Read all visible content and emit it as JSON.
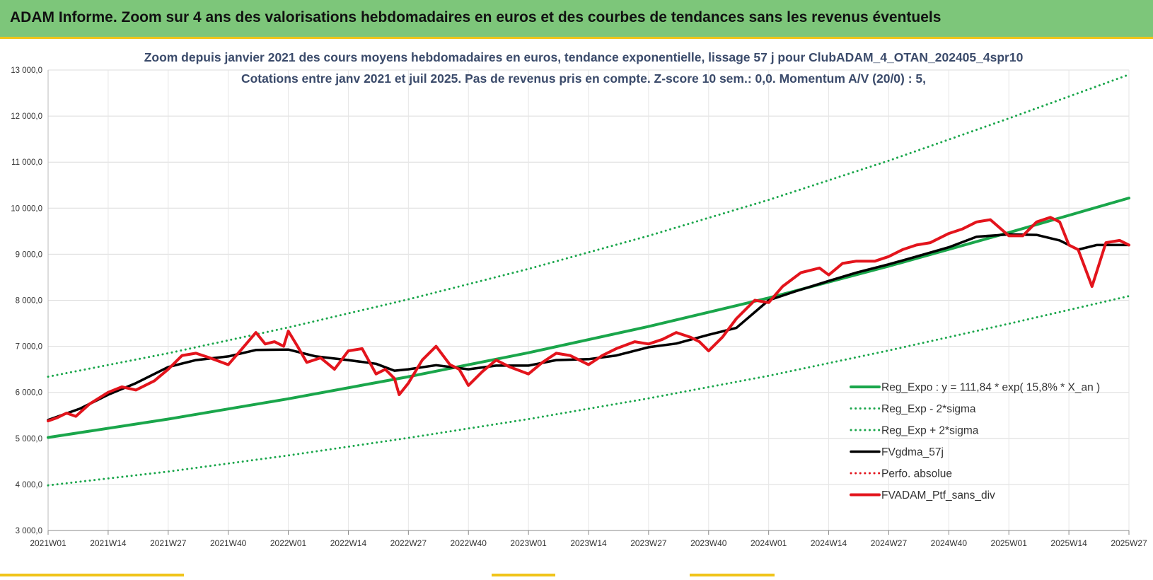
{
  "banner": {
    "title": "ADAM Informe. Zoom sur 4 ans des valorisations hebdomadaires en euros et des courbes de tendances sans les revenus éventuels"
  },
  "colors": {
    "banner_bg": "#7dc67a",
    "accent": "#f0c419",
    "trend_green": "#1aa64b",
    "smooth_black": "#000000",
    "portfolio_red": "#e3141c"
  },
  "chart_data": {
    "type": "line",
    "title": "Zoom depuis janvier 2021 des cours moyens hebdomadaires en euros, tendance exponentielle, lissage 57 j pour ClubADAM_4_OTAN_202405_4spr10",
    "subtitle": "Cotations entre janv 2021 et juil 2025. Pas de revenus pris en compte. Z-score 10 sem.: 0,0. Momentum A/V (20/0) : 5,",
    "x_range": [
      "2021W01",
      "2025W27"
    ],
    "x_ticks": [
      "2021W01",
      "2021W14",
      "2021W27",
      "2021W40",
      "2022W01",
      "2022W14",
      "2022W27",
      "2022W40",
      "2023W01",
      "2023W14",
      "2023W27",
      "2023W40",
      "2024W01",
      "2024W14",
      "2024W27",
      "2024W40",
      "2025W01",
      "2025W14",
      "2025W27"
    ],
    "ylim": [
      3000,
      13000
    ],
    "y_ticks": [
      "3 000,0",
      "4 000,0",
      "5 000,0",
      "6 000,0",
      "7 000,0",
      "8 000,0",
      "9 000,0",
      "10 000,0",
      "11 000,0",
      "12 000,0",
      "13 000,0"
    ],
    "grid": true,
    "legend_position": "bottom-right",
    "series": [
      {
        "name": "Reg_Expo : y = 111,84 * exp( 15,8% *  X_an )",
        "style": "solid-thick",
        "color": "#1aa64b",
        "x": [
          "2021W01",
          "2021W27",
          "2022W01",
          "2022W27",
          "2023W01",
          "2023W27",
          "2024W01",
          "2024W27",
          "2025W01",
          "2025W27"
        ],
        "values": [
          5020,
          5420,
          5860,
          6340,
          6860,
          7430,
          8050,
          8740,
          9470,
          10220
        ]
      },
      {
        "name": "Reg_Exp - 2*sigma",
        "style": "dotted",
        "color": "#1aa64b",
        "x": [
          "2021W01",
          "2021W27",
          "2022W01",
          "2022W27",
          "2023W01",
          "2023W27",
          "2024W01",
          "2024W27",
          "2025W01",
          "2025W27"
        ],
        "values": [
          3980,
          4280,
          4630,
          5010,
          5420,
          5870,
          6360,
          6910,
          7490,
          8090
        ]
      },
      {
        "name": "Reg_Exp + 2*sigma",
        "style": "dotted",
        "color": "#1aa64b",
        "x": [
          "2021W01",
          "2021W27",
          "2022W01",
          "2022W27",
          "2023W01",
          "2023W27",
          "2024W01",
          "2024W27",
          "2025W01",
          "2025W27"
        ],
        "values": [
          6340,
          6850,
          7410,
          8020,
          8680,
          9400,
          10180,
          11030,
          11950,
          12900
        ]
      },
      {
        "name": "FVgdma_57j",
        "style": "solid",
        "color": "#000000",
        "x": [
          "2021W01",
          "2021W08",
          "2021W14",
          "2021W20",
          "2021W27",
          "2021W33",
          "2021W40",
          "2021W46",
          "2022W01",
          "2022W07",
          "2022W14",
          "2022W20",
          "2022W24",
          "2022W27",
          "2022W33",
          "2022W40",
          "2022W46",
          "2023W01",
          "2023W07",
          "2023W14",
          "2023W20",
          "2023W27",
          "2023W33",
          "2023W40",
          "2023W46",
          "2024W01",
          "2024W07",
          "2024W14",
          "2024W20",
          "2024W27",
          "2024W33",
          "2024W40",
          "2024W46",
          "2025W01",
          "2025W07",
          "2025W12",
          "2025W16",
          "2025W20",
          "2025W27"
        ],
        "values": [
          5400,
          5650,
          5950,
          6200,
          6550,
          6700,
          6780,
          6920,
          6930,
          6780,
          6700,
          6620,
          6470,
          6500,
          6590,
          6500,
          6580,
          6580,
          6700,
          6720,
          6800,
          6980,
          7060,
          7250,
          7400,
          8000,
          8200,
          8420,
          8600,
          8780,
          8950,
          9150,
          9380,
          9430,
          9420,
          9300,
          9100,
          9200,
          9200
        ]
      },
      {
        "name": "Perfo. absolue",
        "style": "dotted",
        "color": "#e3141c",
        "x": [],
        "values": []
      },
      {
        "name": "FVADAM_Ptf_sans_div",
        "style": "solid-thick",
        "color": "#e3141c",
        "x": [
          "2021W01",
          "2021W03",
          "2021W05",
          "2021W07",
          "2021W10",
          "2021W14",
          "2021W17",
          "2021W20",
          "2021W24",
          "2021W27",
          "2021W30",
          "2021W33",
          "2021W36",
          "2021W40",
          "2021W43",
          "2021W46",
          "2021W48",
          "2021W50",
          "2021W52",
          "2022W01",
          "2022W03",
          "2022W05",
          "2022W08",
          "2022W11",
          "2022W14",
          "2022W17",
          "2022W20",
          "2022W22",
          "2022W24",
          "2022W25",
          "2022W27",
          "2022W30",
          "2022W33",
          "2022W36",
          "2022W38",
          "2022W40",
          "2022W43",
          "2022W46",
          "2022W49",
          "2023W01",
          "2023W04",
          "2023W07",
          "2023W10",
          "2023W14",
          "2023W17",
          "2023W20",
          "2023W24",
          "2023W27",
          "2023W30",
          "2023W33",
          "2023W36",
          "2023W38",
          "2023W40",
          "2023W43",
          "2023W46",
          "2023W50",
          "2024W01",
          "2024W04",
          "2024W08",
          "2024W12",
          "2024W14",
          "2024W17",
          "2024W20",
          "2024W24",
          "2024W27",
          "2024W30",
          "2024W33",
          "2024W36",
          "2024W40",
          "2024W43",
          "2024W46",
          "2024W49",
          "2025W01",
          "2025W04",
          "2025W07",
          "2025W10",
          "2025W12",
          "2025W14",
          "2025W16",
          "2025W19",
          "2025W22",
          "2025W25",
          "2025W27"
        ],
        "values": [
          5380,
          5450,
          5550,
          5480,
          5750,
          6000,
          6120,
          6050,
          6250,
          6500,
          6800,
          6850,
          6750,
          6600,
          6950,
          7300,
          7050,
          7100,
          7000,
          7330,
          7000,
          6650,
          6750,
          6500,
          6900,
          6950,
          6400,
          6500,
          6300,
          5950,
          6200,
          6700,
          7000,
          6600,
          6500,
          6150,
          6450,
          6700,
          6550,
          6400,
          6650,
          6850,
          6800,
          6600,
          6800,
          6950,
          7100,
          7050,
          7150,
          7300,
          7200,
          7100,
          6900,
          7200,
          7600,
          8000,
          7950,
          8300,
          8600,
          8700,
          8550,
          8800,
          8850,
          8850,
          8950,
          9100,
          9200,
          9250,
          9450,
          9550,
          9700,
          9750,
          9400,
          9400,
          9700,
          9800,
          9700,
          9200,
          9100,
          8300,
          9250,
          9300,
          9200
        ]
      }
    ]
  }
}
